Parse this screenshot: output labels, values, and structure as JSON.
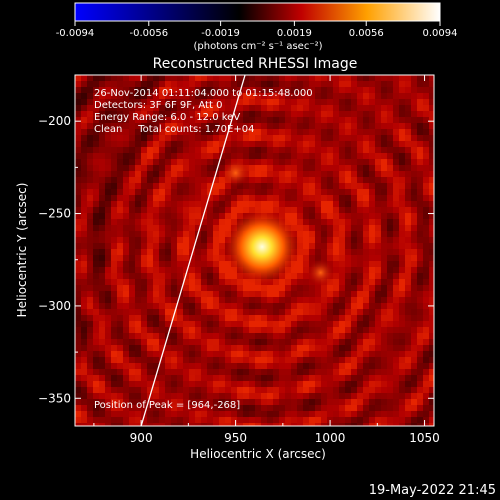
{
  "chart_data": {
    "type": "heatmap",
    "title": "Reconstructed RHESSI Image",
    "xlabel": "Heliocentric X (arcsec)",
    "ylabel": "Heliocentric Y (arcsec)",
    "xlim": [
      865,
      1055
    ],
    "ylim": [
      -365,
      -175
    ],
    "x_ticks": [
      900,
      950,
      1000,
      1050
    ],
    "y_ticks": [
      -200,
      -250,
      -300,
      -350
    ],
    "colorbar": {
      "label": "(photons cm⁻² s⁻¹ asec⁻²)",
      "range": [
        -0.0094,
        0.0094
      ],
      "tick_values": [
        -0.0094,
        -0.0056,
        -0.0019,
        0.0019,
        0.0056,
        0.0094
      ],
      "tick_labels": [
        "-0.0094",
        "-0.0056",
        "-0.0019",
        "0.0019",
        "0.0056",
        "0.0094"
      ],
      "colors": [
        "#0000ff",
        "#000000",
        "#ff2a00",
        "#ffe600",
        "#ffffff"
      ]
    },
    "annotations": {
      "line1": "26-Nov-2014 01:11:04.000 to 01:15:48.000",
      "line2": "Detectors: 3F 6F 9F, Att 0",
      "line3": "Energy Range: 6.0 - 12.0 keV",
      "line4": "Clean     Total counts: 1.70E+04",
      "peak": "Position of Peak = [964,-268]"
    },
    "peak": {
      "x": 964,
      "y": -268
    },
    "secondary_sources": [
      {
        "x": 950,
        "y": -228
      },
      {
        "x": 995,
        "y": -282
      }
    ],
    "limb": {
      "x_top": 955,
      "x_bottom": 900
    }
  },
  "footer": {
    "timestamp": "19-May-2022 21:45"
  }
}
